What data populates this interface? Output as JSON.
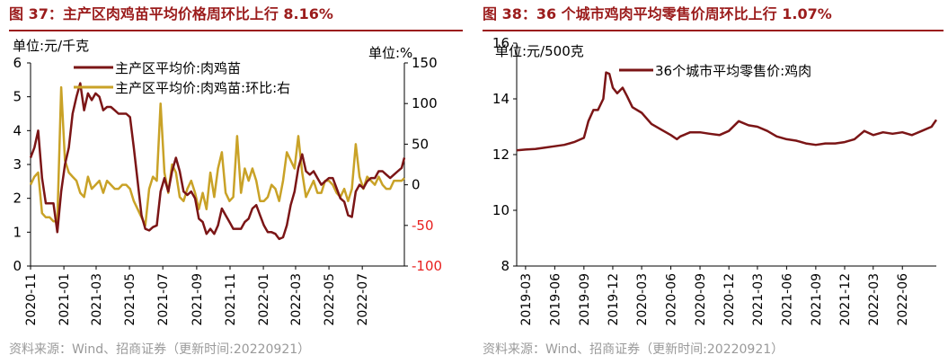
{
  "charts": [
    {
      "title": "图 37：主产区肉鸡苗平均价格周环比上行 8.16%",
      "source": "资料来源：Wind、招商证券（更新时间:20220921）"
    },
    {
      "title": "图 38：36 个城市鸡肉平均零售价周环比上行 1.07%",
      "source": "资料来源：Wind、招商证券（更新时间:20220921）"
    }
  ],
  "chart_data": [
    {
      "type": "line",
      "title": "图 37：主产区肉鸡苗平均价格周环比上行 8.16%",
      "ylabel": "单位:元/千克",
      "y2label": "单位:%",
      "ylim": [
        0,
        6
      ],
      "yticks": [
        0,
        1,
        2,
        3,
        4,
        5,
        6
      ],
      "y2lim": [
        -100,
        150
      ],
      "y2ticks": [
        -100,
        -50,
        0,
        50,
        100,
        150
      ],
      "y2tick_colors": {
        "-100": "#e8201f",
        "-50": "#e8201f"
      },
      "xlim": [
        "2020-11-01",
        "2022-09-16"
      ],
      "xticks": [
        "2020-11",
        "2021-01",
        "2021-03",
        "2021-05",
        "2021-07",
        "2021-09",
        "2021-11",
        "2022-01",
        "2022-03",
        "2022-05",
        "2022-07"
      ],
      "legend_position": "top-center",
      "series": [
        {
          "name": "主产区平均价:肉鸡苗",
          "axis": "left",
          "color": "#7b1516",
          "x": [
            "2020-11-01",
            "2020-11-08",
            "2020-11-15",
            "2020-11-22",
            "2020-11-29",
            "2020-12-06",
            "2020-12-13",
            "2020-12-20",
            "2020-12-27",
            "2021-01-03",
            "2021-01-10",
            "2021-01-17",
            "2021-01-24",
            "2021-01-31",
            "2021-02-07",
            "2021-02-14",
            "2021-02-21",
            "2021-02-28",
            "2021-03-07",
            "2021-03-14",
            "2021-03-21",
            "2021-03-28",
            "2021-04-04",
            "2021-04-11",
            "2021-04-18",
            "2021-04-25",
            "2021-05-02",
            "2021-05-09",
            "2021-05-16",
            "2021-05-23",
            "2021-05-30",
            "2021-06-06",
            "2021-06-13",
            "2021-06-20",
            "2021-06-27",
            "2021-07-04",
            "2021-07-11",
            "2021-07-18",
            "2021-07-25",
            "2021-08-01",
            "2021-08-08",
            "2021-08-15",
            "2021-08-22",
            "2021-08-29",
            "2021-09-05",
            "2021-09-12",
            "2021-09-19",
            "2021-09-26",
            "2021-10-03",
            "2021-10-10",
            "2021-10-17",
            "2021-10-24",
            "2021-10-31",
            "2021-11-07",
            "2021-11-14",
            "2021-11-21",
            "2021-11-28",
            "2021-12-05",
            "2021-12-12",
            "2021-12-19",
            "2021-12-26",
            "2022-01-02",
            "2022-01-09",
            "2022-01-16",
            "2022-01-23",
            "2022-01-30",
            "2022-02-06",
            "2022-02-13",
            "2022-02-20",
            "2022-02-27",
            "2022-03-06",
            "2022-03-13",
            "2022-03-20",
            "2022-03-27",
            "2022-04-03",
            "2022-04-10",
            "2022-04-17",
            "2022-04-24",
            "2022-05-01",
            "2022-05-08",
            "2022-05-15",
            "2022-05-22",
            "2022-05-29",
            "2022-06-05",
            "2022-06-12",
            "2022-06-19",
            "2022-06-26",
            "2022-07-03",
            "2022-07-10",
            "2022-07-17",
            "2022-07-24",
            "2022-07-31",
            "2022-08-07",
            "2022-08-14",
            "2022-08-21",
            "2022-08-28",
            "2022-09-04",
            "2022-09-11",
            "2022-09-16"
          ],
          "values": [
            3.2,
            3.5,
            4.0,
            2.6,
            1.85,
            1.85,
            1.85,
            1.0,
            2.2,
            3.0,
            3.5,
            4.5,
            5.0,
            5.4,
            4.6,
            5.1,
            4.9,
            5.1,
            5.0,
            4.6,
            4.7,
            4.7,
            4.6,
            4.5,
            4.5,
            4.5,
            4.4,
            3.5,
            2.5,
            1.5,
            1.1,
            1.05,
            1.15,
            1.2,
            2.2,
            2.6,
            2.2,
            2.8,
            3.2,
            2.8,
            2.2,
            2.1,
            2.2,
            2.0,
            1.4,
            1.3,
            0.95,
            1.1,
            0.95,
            1.2,
            1.7,
            1.5,
            1.3,
            1.1,
            1.1,
            1.1,
            1.3,
            1.4,
            1.7,
            1.8,
            1.5,
            1.2,
            1.0,
            1.0,
            0.95,
            0.8,
            0.85,
            1.2,
            1.8,
            2.2,
            2.9,
            3.3,
            2.8,
            2.7,
            2.8,
            2.6,
            2.4,
            2.5,
            2.6,
            2.6,
            2.3,
            2.0,
            1.9,
            1.5,
            1.45,
            2.2,
            2.4,
            2.3,
            2.5,
            2.6,
            2.6,
            2.8,
            2.8,
            2.7,
            2.6,
            2.7,
            2.8,
            2.9,
            3.2
          ]
        },
        {
          "name": "主产区平均价:肉鸡苗:环比:右",
          "axis": "right",
          "color": "#c9a227",
          "x": [
            "2020-11-01",
            "2020-11-08",
            "2020-11-15",
            "2020-11-22",
            "2020-11-29",
            "2020-12-06",
            "2020-12-13",
            "2020-12-20",
            "2020-12-27",
            "2021-01-03",
            "2021-01-10",
            "2021-01-17",
            "2021-01-24",
            "2021-01-31",
            "2021-02-07",
            "2021-02-14",
            "2021-02-21",
            "2021-02-28",
            "2021-03-07",
            "2021-03-14",
            "2021-03-21",
            "2021-03-28",
            "2021-04-04",
            "2021-04-11",
            "2021-04-18",
            "2021-04-25",
            "2021-05-02",
            "2021-05-09",
            "2021-05-16",
            "2021-05-23",
            "2021-05-30",
            "2021-06-06",
            "2021-06-13",
            "2021-06-20",
            "2021-06-27",
            "2021-07-04",
            "2021-07-11",
            "2021-07-18",
            "2021-07-25",
            "2021-08-01",
            "2021-08-08",
            "2021-08-15",
            "2021-08-22",
            "2021-08-29",
            "2021-09-05",
            "2021-09-12",
            "2021-09-19",
            "2021-09-26",
            "2021-10-03",
            "2021-10-10",
            "2021-10-17",
            "2021-10-24",
            "2021-10-31",
            "2021-11-07",
            "2021-11-14",
            "2021-11-21",
            "2021-11-28",
            "2021-12-05",
            "2021-12-12",
            "2021-12-19",
            "2021-12-26",
            "2022-01-02",
            "2022-01-09",
            "2022-01-16",
            "2022-01-23",
            "2022-01-30",
            "2022-02-06",
            "2022-02-13",
            "2022-02-20",
            "2022-02-27",
            "2022-03-06",
            "2022-03-13",
            "2022-03-20",
            "2022-03-27",
            "2022-04-03",
            "2022-04-10",
            "2022-04-17",
            "2022-04-24",
            "2022-05-01",
            "2022-05-08",
            "2022-05-15",
            "2022-05-22",
            "2022-05-29",
            "2022-06-05",
            "2022-06-12",
            "2022-06-19",
            "2022-06-26",
            "2022-07-03",
            "2022-07-10",
            "2022-07-17",
            "2022-07-24",
            "2022-07-31",
            "2022-08-07",
            "2022-08-14",
            "2022-08-21",
            "2022-08-28",
            "2022-09-04",
            "2022-09-11",
            "2022-09-16"
          ],
          "values": [
            0,
            10,
            15,
            -35,
            -40,
            -40,
            -45,
            -45,
            120,
            30,
            15,
            10,
            5,
            -10,
            -15,
            10,
            -5,
            0,
            5,
            -10,
            5,
            0,
            -5,
            -5,
            0,
            0,
            -5,
            -20,
            -30,
            -40,
            -50,
            -5,
            10,
            5,
            100,
            15,
            -10,
            25,
            15,
            -15,
            -20,
            -5,
            5,
            -10,
            -30,
            -10,
            -30,
            15,
            -15,
            20,
            40,
            -10,
            -20,
            -15,
            60,
            -10,
            20,
            5,
            20,
            5,
            -20,
            -20,
            -15,
            0,
            -5,
            -20,
            5,
            40,
            30,
            20,
            60,
            15,
            -15,
            -5,
            5,
            -10,
            -10,
            5,
            5,
            0,
            -10,
            -15,
            -5,
            -20,
            -5,
            50,
            10,
            -5,
            10,
            5,
            0,
            10,
            0,
            -5,
            -5,
            5,
            5,
            5,
            8.16
          ]
        }
      ]
    },
    {
      "type": "line",
      "title": "图 38：36 个城市鸡肉平均零售价周环比上行 1.07%",
      "ylabel": "单位:元/500克",
      "ylim": [
        8,
        16
      ],
      "yticks": [
        8,
        10,
        12,
        14,
        16
      ],
      "xlim": [
        "2019-02-01",
        "2022-09-16"
      ],
      "xticks": [
        "2019-03",
        "2019-06",
        "2019-09",
        "2019-12",
        "2020-03",
        "2020-06",
        "2020-09",
        "2020-12",
        "2021-03",
        "2021-06",
        "2021-09",
        "2021-12",
        "2022-03",
        "2022-06"
      ],
      "legend_position": "top-left",
      "series": [
        {
          "name": "36个城市平均零售价:鸡肉",
          "color": "#7b1516",
          "x": [
            "2019-02-01",
            "2019-03-01",
            "2019-04-01",
            "2019-05-01",
            "2019-06-01",
            "2019-07-01",
            "2019-08-01",
            "2019-09-01",
            "2019-09-15",
            "2019-10-01",
            "2019-10-15",
            "2019-11-01",
            "2019-11-10",
            "2019-11-20",
            "2019-12-01",
            "2019-12-15",
            "2020-01-01",
            "2020-01-15",
            "2020-02-01",
            "2020-03-01",
            "2020-04-01",
            "2020-05-01",
            "2020-06-01",
            "2020-06-20",
            "2020-07-01",
            "2020-08-01",
            "2020-09-01",
            "2020-10-01",
            "2020-11-01",
            "2020-12-01",
            "2021-01-01",
            "2021-02-01",
            "2021-03-01",
            "2021-04-01",
            "2021-05-01",
            "2021-06-01",
            "2021-07-01",
            "2021-08-01",
            "2021-09-01",
            "2021-10-01",
            "2021-11-01",
            "2021-12-01",
            "2022-01-01",
            "2022-02-01",
            "2022-03-01",
            "2022-04-01",
            "2022-05-01",
            "2022-06-01",
            "2022-07-01",
            "2022-08-01",
            "2022-09-01",
            "2022-09-16"
          ],
          "values": [
            12.15,
            12.18,
            12.2,
            12.25,
            12.3,
            12.35,
            12.45,
            12.6,
            13.2,
            13.6,
            13.6,
            14.0,
            14.95,
            14.9,
            14.4,
            14.2,
            14.4,
            14.1,
            13.7,
            13.5,
            13.1,
            12.9,
            12.7,
            12.55,
            12.65,
            12.8,
            12.8,
            12.75,
            12.7,
            12.85,
            13.2,
            13.05,
            13.0,
            12.85,
            12.65,
            12.55,
            12.5,
            12.4,
            12.35,
            12.4,
            12.4,
            12.45,
            12.55,
            12.85,
            12.7,
            12.8,
            12.75,
            12.8,
            12.7,
            12.85,
            13.0,
            13.25
          ]
        }
      ]
    }
  ]
}
